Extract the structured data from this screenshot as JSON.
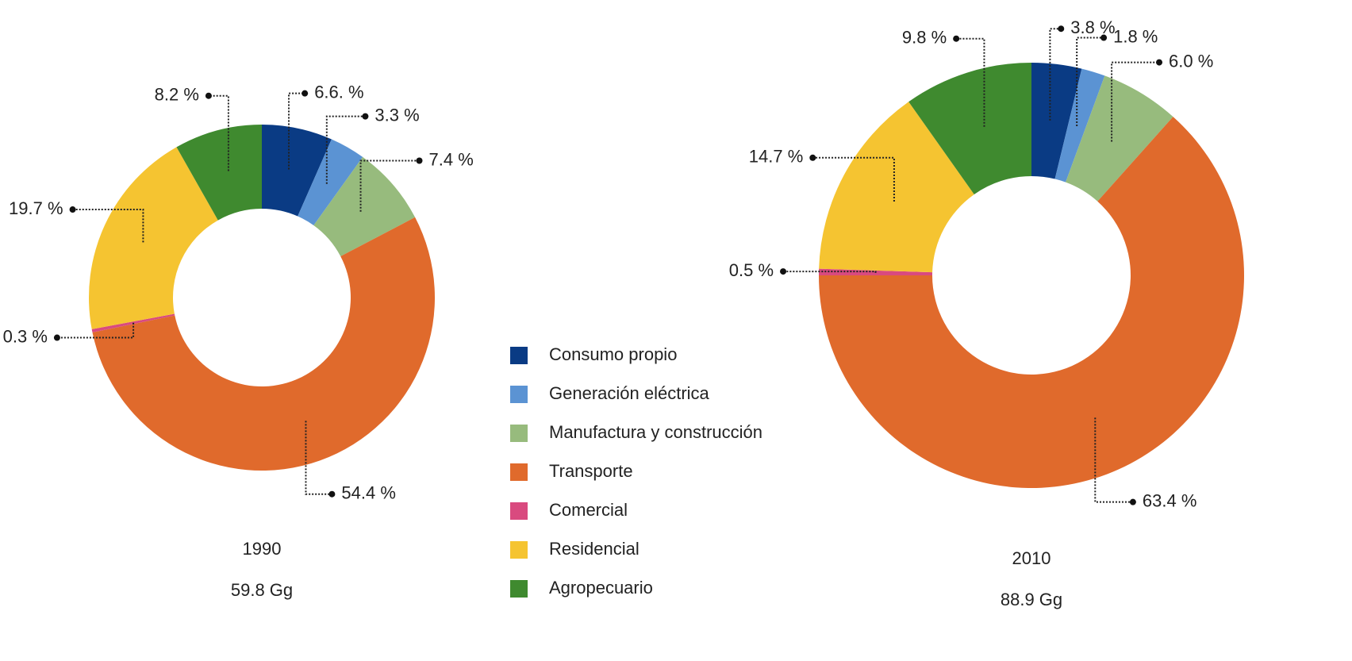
{
  "chart_data": [
    {
      "type": "pie",
      "title": "1990",
      "subtitle": "59.8 Gg",
      "categories": [
        "Consumo propio",
        "Generación eléctrica",
        "Manufactura y construcción",
        "Transporte",
        "Comercial",
        "Residencial",
        "Agropecuario"
      ],
      "values": [
        6.6,
        3.3,
        7.4,
        54.4,
        0.3,
        19.7,
        8.2
      ],
      "value_labels": [
        "6.6. %",
        "3.3 %",
        "7.4 %",
        "54.4 %",
        "0.3 %",
        "19.7 %",
        "8.2 %"
      ],
      "colors": [
        "#0a3b84",
        "#5b93d3",
        "#97bb7d",
        "#e06a2c",
        "#d94a7f",
        "#f5c431",
        "#3f8a2f"
      ]
    },
    {
      "type": "pie",
      "title": "2010",
      "subtitle": "88.9 Gg",
      "categories": [
        "Consumo propio",
        "Generación eléctrica",
        "Manufactura y construcción",
        "Transporte",
        "Comercial",
        "Residencial",
        "Agropecuario"
      ],
      "values": [
        3.8,
        1.8,
        6.0,
        63.4,
        0.5,
        14.7,
        9.8
      ],
      "value_labels": [
        "3.8 %",
        "1.8 %",
        "6.0 %",
        "63.4 %",
        "0.5 %",
        "14.7 %",
        "9.8 %"
      ],
      "colors": [
        "#0a3b84",
        "#5b93d3",
        "#97bb7d",
        "#e06a2c",
        "#d94a7f",
        "#f5c431",
        "#3f8a2f"
      ]
    }
  ]
}
